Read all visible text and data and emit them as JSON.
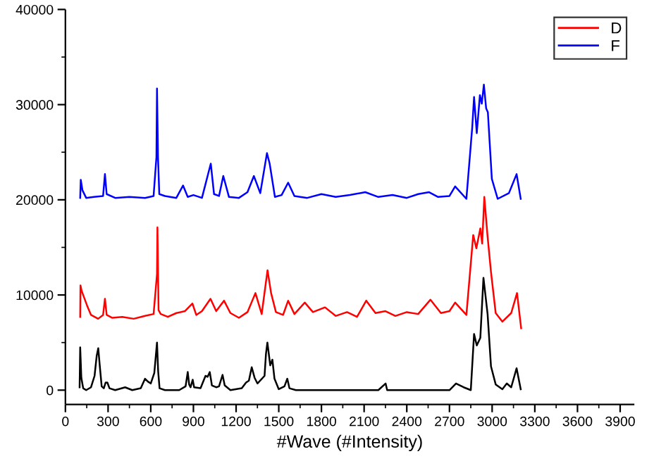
{
  "chart_data": {
    "type": "line",
    "xlabel": "#Wave (#Intensity)",
    "xlim": [
      0,
      4000
    ],
    "xticks": [
      0,
      300,
      600,
      900,
      1200,
      1500,
      1800,
      2100,
      2400,
      2700,
      3000,
      3300,
      3600,
      3900
    ],
    "ylim": [
      -1500,
      40000
    ],
    "yticks": [
      0,
      10000,
      20000,
      30000,
      40000
    ],
    "grid": false,
    "legend": "top right",
    "marker": "none",
    "line_style": "solid",
    "series": [
      {
        "color": "#000000",
        "x": [
          100,
          104,
          112,
          125,
          146,
          180,
          205,
          220,
          231,
          242,
          255,
          270,
          283,
          295,
          310,
          350,
          420,
          470,
          530,
          560,
          580,
          600,
          625,
          644,
          652,
          662,
          700,
          800,
          845,
          860,
          870,
          880,
          895,
          905,
          950,
          985,
          1000,
          1015,
          1030,
          1060,
          1080,
          1105,
          1120,
          1160,
          1240,
          1270,
          1290,
          1310,
          1330,
          1350,
          1400,
          1410,
          1420,
          1440,
          1455,
          1470,
          1500,
          1540,
          1560,
          1575,
          1620,
          1900,
          2200,
          2251,
          2262,
          2700,
          2746,
          2800,
          2850,
          2873,
          2892,
          2917,
          2939,
          2968,
          2992,
          3025,
          3072,
          3103,
          3134,
          3172,
          3201
        ],
        "values": [
          300,
          4500,
          1300,
          200,
          0,
          300,
          1500,
          3600,
          4400,
          2500,
          400,
          200,
          800,
          800,
          200,
          0,
          300,
          0,
          200,
          1200,
          900,
          700,
          1800,
          5000,
          2000,
          200,
          0,
          0,
          400,
          1900,
          600,
          300,
          1100,
          300,
          200,
          1500,
          1400,
          1900,
          500,
          300,
          400,
          1600,
          500,
          0,
          200,
          800,
          1000,
          2400,
          1300,
          700,
          1500,
          3800,
          5000,
          2600,
          3200,
          1200,
          100,
          400,
          1200,
          200,
          0,
          0,
          0,
          700,
          0,
          0,
          700,
          300,
          0,
          5900,
          4700,
          5500,
          11800,
          8000,
          2500,
          600,
          100,
          700,
          300,
          2300,
          100
        ]
      },
      {
        "name": "D",
        "color": "#ff0000",
        "x": [
          104,
          106,
          115,
          152,
          180,
          230,
          265,
          278,
          290,
          330,
          400,
          480,
          560,
          620,
          644,
          647,
          655,
          670,
          720,
          780,
          840,
          893,
          920,
          960,
          1020,
          1060,
          1115,
          1160,
          1220,
          1280,
          1336,
          1380,
          1421,
          1446,
          1480,
          1530,
          1566,
          1610,
          1683,
          1740,
          1825,
          1900,
          1980,
          2050,
          2115,
          2180,
          2250,
          2320,
          2400,
          2480,
          2566,
          2640,
          2700,
          2740,
          2819,
          2867,
          2889,
          2917,
          2930,
          2945,
          2967,
          2992,
          3025,
          3072,
          3134,
          3175,
          3204
        ],
        "values": [
          7700,
          11000,
          10400,
          8900,
          7900,
          7500,
          7900,
          9600,
          7900,
          7600,
          7700,
          7500,
          7800,
          8000,
          12200,
          17100,
          8400,
          8000,
          7700,
          8100,
          8300,
          9100,
          7900,
          8300,
          9600,
          8300,
          9400,
          8100,
          7600,
          8200,
          10200,
          8000,
          12600,
          10200,
          8200,
          7900,
          9400,
          8000,
          9200,
          8200,
          8700,
          7800,
          8200,
          7700,
          9400,
          8100,
          8300,
          7800,
          8200,
          8000,
          9500,
          8100,
          8300,
          9200,
          7900,
          16300,
          14900,
          17000,
          15400,
          20300,
          16300,
          12400,
          8100,
          7200,
          8100,
          10200,
          6500
        ]
      },
      {
        "name": "F",
        "color": "#0000ff",
        "x": [
          104,
          108,
          120,
          146,
          200,
          265,
          278,
          290,
          350,
          450,
          560,
          620,
          640,
          644,
          651,
          660,
          700,
          780,
          827,
          860,
          900,
          960,
          1022,
          1045,
          1080,
          1110,
          1150,
          1220,
          1280,
          1325,
          1370,
          1417,
          1436,
          1473,
          1520,
          1566,
          1610,
          1700,
          1800,
          1900,
          2000,
          2108,
          2200,
          2300,
          2400,
          2480,
          2557,
          2620,
          2700,
          2740,
          2819,
          2860,
          2873,
          2892,
          2914,
          2927,
          2942,
          2958,
          2970,
          2998,
          3039,
          3118,
          3172,
          3201
        ],
        "values": [
          20200,
          22100,
          21000,
          20200,
          20300,
          20400,
          22700,
          20600,
          20200,
          20300,
          20200,
          20400,
          24500,
          31700,
          24500,
          20600,
          20400,
          20200,
          21500,
          20300,
          20500,
          20200,
          23800,
          20600,
          20400,
          22500,
          20300,
          20200,
          20800,
          22500,
          20700,
          24900,
          23800,
          20300,
          20500,
          21800,
          20400,
          20200,
          20600,
          20300,
          20500,
          20800,
          20300,
          20500,
          20200,
          20600,
          20800,
          20300,
          20400,
          21400,
          20100,
          27600,
          30800,
          27000,
          31000,
          30100,
          32100,
          29600,
          29200,
          22200,
          20100,
          20700,
          22700,
          20100
        ]
      }
    ]
  }
}
